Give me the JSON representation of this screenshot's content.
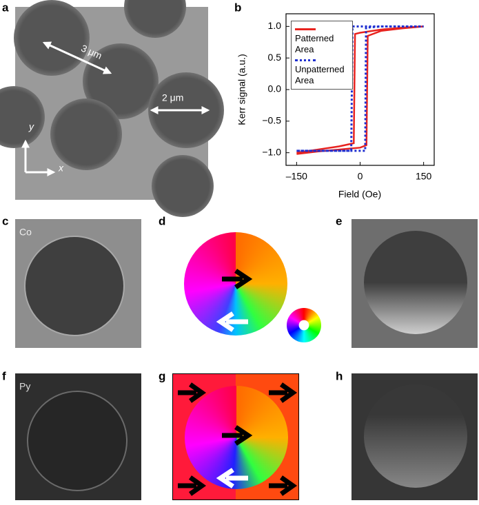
{
  "panels": {
    "labels": [
      "a",
      "b",
      "c",
      "d",
      "e",
      "f",
      "g",
      "h"
    ],
    "scale_3": "3 μm",
    "scale_2": "2 μm",
    "axis_y": "y",
    "axis_x": "x",
    "material_c": "Co",
    "material_f": "Py"
  },
  "chart_data": {
    "type": "line",
    "xlabel": "Field (Oe)",
    "ylabel": "Kerr signal (a.u.)",
    "xlim": [
      -175,
      175
    ],
    "ylim": [
      -1.2,
      1.2
    ],
    "xticks": [
      {
        "value": -150,
        "label": "–150"
      },
      0,
      150
    ],
    "yticks": [
      {
        "value": -1,
        "label": "−1.0"
      },
      {
        "value": -0.5,
        "label": "−0.5"
      },
      {
        "value": 0,
        "label": "0.0"
      },
      {
        "value": 0.5,
        "label": "0.5"
      },
      {
        "value": 1,
        "label": "1.0"
      }
    ],
    "legend": "upper left",
    "series": [
      {
        "name": "Patterned Area",
        "color": "#e8231f",
        "dash": "solid",
        "x": [
          -150,
          -100,
          -50,
          0,
          15,
          18,
          50,
          100,
          150,
          100,
          50,
          0,
          -12,
          -15,
          -50,
          -100,
          -150
        ],
        "values": [
          -1.02,
          -0.98,
          -0.95,
          -0.92,
          -0.88,
          0.85,
          0.93,
          0.97,
          1.0,
          0.98,
          0.95,
          0.9,
          0.88,
          -0.85,
          -0.9,
          -0.95,
          -1.0
        ]
      },
      {
        "name": "Unpatterned Area",
        "color": "#1f2fd0",
        "dash": "dotted",
        "x": [
          -150,
          -100,
          0,
          12,
          14,
          50,
          150,
          50,
          -18,
          -21,
          -100,
          -150
        ],
        "values": [
          -0.97,
          -0.97,
          -0.97,
          -0.97,
          0.98,
          1.0,
          1.0,
          1.0,
          1.0,
          -0.97,
          -0.97,
          -0.97
        ]
      }
    ]
  }
}
